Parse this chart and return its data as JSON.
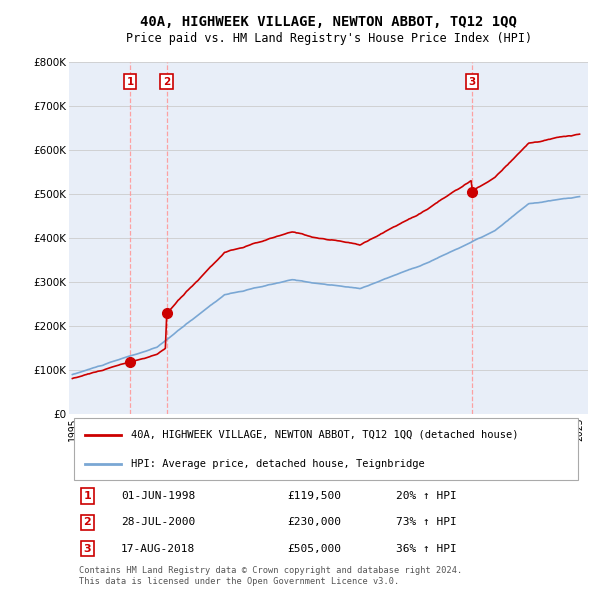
{
  "title": "40A, HIGHWEEK VILLAGE, NEWTON ABBOT, TQ12 1QQ",
  "subtitle": "Price paid vs. HM Land Registry's House Price Index (HPI)",
  "transactions": [
    {
      "num": 1,
      "date": "01-JUN-1998",
      "price": 119500,
      "pct": "20%",
      "year": 1998.42
    },
    {
      "num": 2,
      "date": "28-JUL-2000",
      "price": 230000,
      "pct": "73%",
      "year": 2000.58
    },
    {
      "num": 3,
      "date": "17-AUG-2018",
      "price": 505000,
      "pct": "36%",
      "year": 2018.63
    }
  ],
  "legend_line1": "40A, HIGHWEEK VILLAGE, NEWTON ABBOT, TQ12 1QQ (detached house)",
  "legend_line2": "HPI: Average price, detached house, Teignbridge",
  "footnote1": "Contains HM Land Registry data © Crown copyright and database right 2024.",
  "footnote2": "This data is licensed under the Open Government Licence v3.0.",
  "property_color": "#cc0000",
  "hpi_color": "#7aa7d4",
  "vline_color": "#ff9999",
  "background_color": "#ffffff",
  "plot_bg_color": "#e8eef8",
  "grid_color": "#cccccc",
  "ylim": [
    0,
    800000
  ],
  "xlim_start": 1994.8,
  "xlim_end": 2025.5,
  "xtick_years": [
    1995,
    1996,
    1997,
    1998,
    1999,
    2000,
    2001,
    2002,
    2003,
    2004,
    2005,
    2006,
    2007,
    2008,
    2009,
    2010,
    2011,
    2012,
    2013,
    2014,
    2015,
    2016,
    2017,
    2018,
    2019,
    2020,
    2021,
    2022,
    2023,
    2024,
    2025
  ]
}
